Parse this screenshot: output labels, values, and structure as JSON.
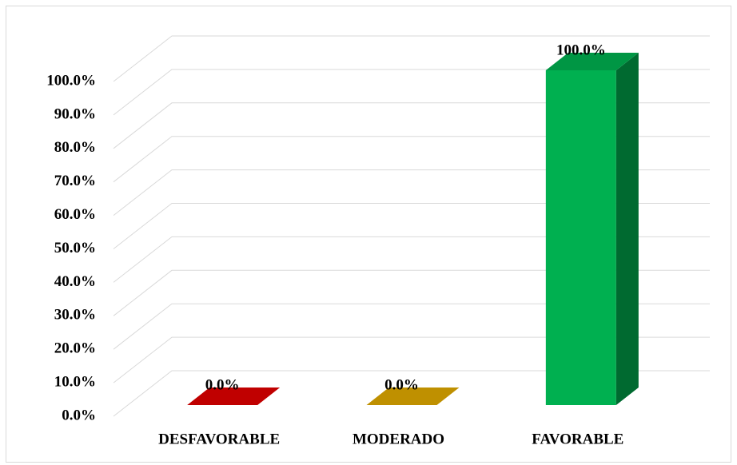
{
  "chart_data": {
    "type": "bar3d",
    "categories": [
      "DESFAVORABLE",
      "MODERADO",
      "FAVORABLE"
    ],
    "values": [
      0,
      0,
      100
    ],
    "value_labels": [
      "0.0%",
      "0.0%",
      "100.0%"
    ],
    "colors": [
      "#c00000",
      "#bf9000",
      "#00b050"
    ],
    "ylim": [
      0,
      100
    ],
    "yticks": [
      {
        "value": 0,
        "label": "0.0%"
      },
      {
        "value": 10,
        "label": "10.0%"
      },
      {
        "value": 20,
        "label": "20.0%"
      },
      {
        "value": 30,
        "label": "30.0%"
      },
      {
        "value": 40,
        "label": "40.0%"
      },
      {
        "value": 50,
        "label": "50.0%"
      },
      {
        "value": 60,
        "label": "60.0%"
      },
      {
        "value": 70,
        "label": "70.0%"
      },
      {
        "value": 80,
        "label": "80.0%"
      },
      {
        "value": 90,
        "label": "90.0%"
      },
      {
        "value": 100,
        "label": "100.0%"
      }
    ],
    "grid": true
  }
}
